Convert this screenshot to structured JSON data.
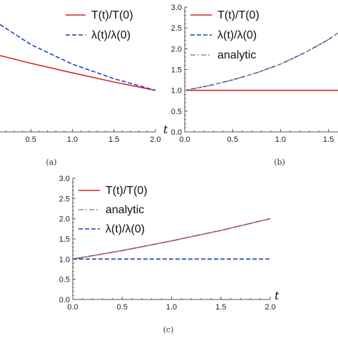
{
  "colors": {
    "T": "#d62728",
    "lambda": "#1f3fbf",
    "analytic": "#8c8c8c",
    "axis": "#555555"
  },
  "chart_data": [
    {
      "panel": "a",
      "caption": "(a)",
      "type": "line",
      "xlabel": "t",
      "ylabel": "",
      "xlim": [
        0.0,
        2.0
      ],
      "ylim": [
        0.0,
        3.0
      ],
      "x_ticks": [
        "0.5",
        "1.0",
        "1.5",
        "2.0"
      ],
      "y_ticks": [],
      "legend": "top-right",
      "grid": false,
      "series": [
        {
          "name": "T(t)/T(0)",
          "style": "solid",
          "color": "T",
          "x": [
            0.0,
            0.5,
            1.0,
            1.5,
            2.0
          ],
          "y": [
            1.9,
            1.65,
            1.42,
            1.2,
            1.0
          ]
        },
        {
          "name": "λ(t)/λ(0)",
          "style": "dashed",
          "color": "lambda",
          "x": [
            0.0,
            0.5,
            1.0,
            1.5,
            2.0
          ],
          "y": [
            2.75,
            2.1,
            1.63,
            1.28,
            1.0
          ]
        }
      ]
    },
    {
      "panel": "b",
      "caption": "(b)",
      "type": "line",
      "xlabel": "",
      "ylabel": "",
      "xlim": [
        0.0,
        1.6
      ],
      "ylim": [
        0.0,
        3.0
      ],
      "x_ticks": [
        "0.0",
        "0.5",
        "1.0",
        "1.5"
      ],
      "y_ticks": [
        "0.0",
        "0.5",
        "1.0",
        "1.5",
        "2.0",
        "2.5",
        "3.0"
      ],
      "legend": "top-left",
      "grid": false,
      "series": [
        {
          "name": "T(t)/T(0)",
          "style": "solid",
          "color": "T",
          "x": [
            0.0,
            0.5,
            1.0,
            1.5,
            1.6
          ],
          "y": [
            1.0,
            1.0,
            1.0,
            1.0,
            1.0
          ]
        },
        {
          "name": "λ(t)/λ(0)",
          "style": "dashed",
          "color": "lambda",
          "x": [
            0.0,
            0.25,
            0.5,
            0.75,
            1.0,
            1.25,
            1.5,
            1.6
          ],
          "y": [
            1.0,
            1.11,
            1.25,
            1.42,
            1.63,
            1.9,
            2.22,
            2.38
          ]
        },
        {
          "name": "analytic",
          "style": "dashdot",
          "color": "analytic",
          "x": [
            0.0,
            0.25,
            0.5,
            0.75,
            1.0,
            1.25,
            1.5,
            1.6
          ],
          "y": [
            1.0,
            1.11,
            1.25,
            1.42,
            1.63,
            1.9,
            2.22,
            2.38
          ]
        }
      ]
    },
    {
      "panel": "c",
      "caption": "(c)",
      "type": "line",
      "xlabel": "t",
      "ylabel": "",
      "xlim": [
        0.0,
        2.0
      ],
      "ylim": [
        0.0,
        3.0
      ],
      "x_ticks": [
        "0.0",
        "0.5",
        "1.0",
        "1.5",
        "2.0"
      ],
      "y_ticks": [
        "0.0",
        "0.5",
        "1.0",
        "1.5",
        "2.0",
        "2.5",
        "3.0"
      ],
      "legend": "top-left",
      "grid": false,
      "series": [
        {
          "name": "T(t)/T(0)",
          "style": "solid",
          "color": "T",
          "x": [
            0.0,
            0.5,
            1.0,
            1.5,
            2.0
          ],
          "y": [
            1.0,
            1.21,
            1.45,
            1.71,
            2.0
          ]
        },
        {
          "name": "analytic",
          "style": "dashdot",
          "color": "analytic",
          "x": [
            0.0,
            0.5,
            1.0,
            1.5,
            2.0
          ],
          "y": [
            1.0,
            1.21,
            1.45,
            1.71,
            2.0
          ]
        },
        {
          "name": "λ(t)/λ(0)",
          "style": "dashed",
          "color": "lambda",
          "x": [
            0.0,
            0.5,
            1.0,
            1.5,
            2.0
          ],
          "y": [
            1.0,
            1.0,
            1.0,
            1.0,
            1.0
          ]
        }
      ]
    }
  ]
}
